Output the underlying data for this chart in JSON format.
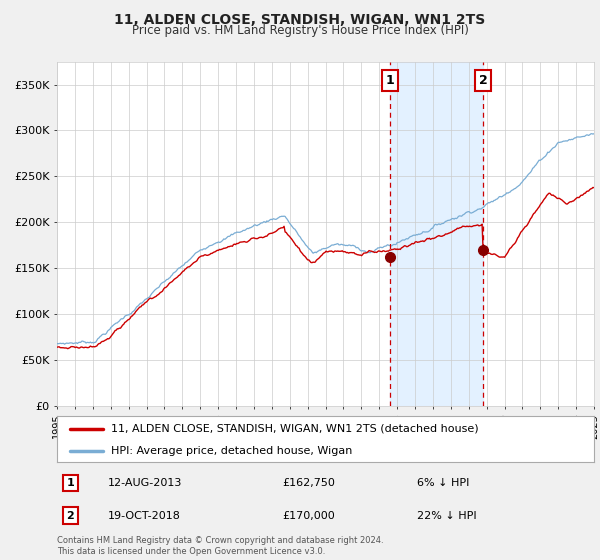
{
  "title": "11, ALDEN CLOSE, STANDISH, WIGAN, WN1 2TS",
  "subtitle": "Price paid vs. HM Land Registry's House Price Index (HPI)",
  "legend_line1": "11, ALDEN CLOSE, STANDISH, WIGAN, WN1 2TS (detached house)",
  "legend_line2": "HPI: Average price, detached house, Wigan",
  "annotation1_date": "12-AUG-2013",
  "annotation1_price": "£162,750",
  "annotation1_hpi": "6% ↓ HPI",
  "annotation2_date": "19-OCT-2018",
  "annotation2_price": "£170,000",
  "annotation2_hpi": "22% ↓ HPI",
  "footer": "Contains HM Land Registry data © Crown copyright and database right 2024.\nThis data is licensed under the Open Government Licence v3.0.",
  "hpi_color": "#7aadd4",
  "price_color": "#cc0000",
  "marker_color": "#880000",
  "vline_color": "#cc0000",
  "shade_color": "#ddeeff",
  "ylabel_vals": [
    "£0",
    "£50K",
    "£100K",
    "£150K",
    "£200K",
    "£250K",
    "£300K",
    "£350K"
  ],
  "ylabel_nums": [
    0,
    50000,
    100000,
    150000,
    200000,
    250000,
    300000,
    350000
  ],
  "ylim": [
    0,
    375000
  ],
  "year_start": 1995,
  "year_end": 2025,
  "sale1_year": 2013.62,
  "sale1_value": 162750,
  "sale2_year": 2018.8,
  "sale2_value": 170000,
  "background_color": "#f0f0f0",
  "plot_bg_color": "#ffffff",
  "grid_color": "#cccccc"
}
